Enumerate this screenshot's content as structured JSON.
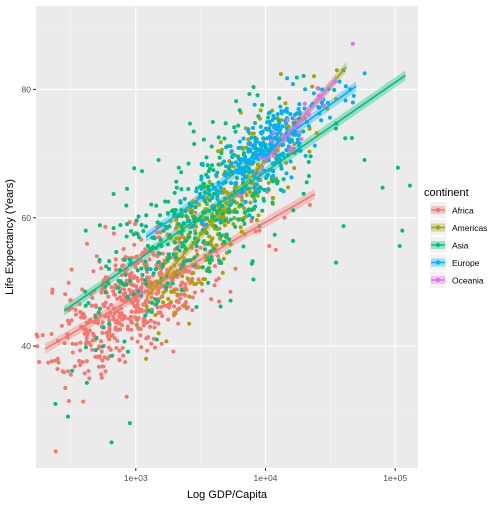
{
  "chart_data": {
    "type": "scatter",
    "title": "",
    "xlabel": "Log GDP/Capita",
    "ylabel": "Life Expectancy (Years)",
    "x_scale": "log10",
    "xlim": [
      170,
      150000
    ],
    "ylim": [
      21,
      93
    ],
    "x_ticks": [
      1000,
      10000,
      100000
    ],
    "x_tick_labels": [
      "1e+03",
      "1e+04",
      "1e+05"
    ],
    "y_ticks": [
      40,
      60,
      80
    ],
    "y_tick_labels": [
      "40",
      "60",
      "80"
    ],
    "grid": true,
    "legend": {
      "title": "continent",
      "placement": "right",
      "items": [
        "Africa",
        "Americas",
        "Asia",
        "Europe",
        "Oceania"
      ]
    },
    "series": [
      {
        "name": "Africa",
        "color": "#F8766D",
        "cluster": {
          "log10_x_center": 3.0,
          "log10_x_spread": 0.35,
          "y_center": 47.5,
          "y_spread": 7.5,
          "count": 600
        },
        "points": [
          [
            241,
            23.6
          ],
          [
            7000,
            64.0
          ],
          [
            14000,
            60.0
          ],
          [
            22000,
            62.0
          ],
          [
            12000,
            55.0
          ],
          [
            9000,
            58.0
          ],
          [
            3000,
            63.0
          ],
          [
            500,
            54.0
          ],
          [
            250,
            38.0
          ],
          [
            320,
            44.0
          ]
        ],
        "trend": {
          "x_range": [
            200,
            24000
          ],
          "y_range": [
            39.6,
            63.7
          ]
        }
      },
      {
        "name": "Americas",
        "color": "#A3A500",
        "cluster": {
          "log10_x_center": 3.7,
          "log10_x_spread": 0.3,
          "y_center": 66.0,
          "y_spread": 7.0,
          "count": 300
        },
        "points": [
          [
            1200,
            38.0
          ],
          [
            1500,
            42.0
          ],
          [
            35000,
            78.5
          ],
          [
            30000,
            77.0
          ],
          [
            20000,
            75.5
          ]
        ],
        "trend": {
          "x_range": [
            1200,
            42000
          ],
          "y_range": [
            47.5,
            83.5
          ]
        }
      },
      {
        "name": "Asia",
        "color": "#00BF7D",
        "cluster": {
          "log10_x_center": 3.5,
          "log10_x_spread": 0.4,
          "y_center": 60.0,
          "y_spread": 10.0,
          "count": 400
        },
        "points": [
          [
            113523,
            58.0
          ],
          [
            108382,
            55.6
          ],
          [
            105000,
            67.8
          ],
          [
            80000,
            64.7
          ],
          [
            58000,
            69.0
          ],
          [
            40000,
            58.7
          ],
          [
            35000,
            53.0
          ],
          [
            240,
            31.0
          ],
          [
            300,
            29.0
          ],
          [
            650,
            25.0
          ],
          [
            900,
            28.0
          ],
          [
            130000,
            65.0
          ]
        ],
        "trend": {
          "x_range": [
            280,
            120000
          ],
          "y_range": [
            45.5,
            82.2
          ]
        }
      },
      {
        "name": "Europe",
        "color": "#00B0F6",
        "cluster": {
          "log10_x_center": 4.0,
          "log10_x_spread": 0.25,
          "y_center": 72.0,
          "y_spread": 4.5,
          "count": 300
        },
        "points": [
          [
            1100,
            48.0
          ],
          [
            1300,
            52.0
          ],
          [
            45000,
            80.0
          ],
          [
            48000,
            79.0
          ]
        ],
        "trend": {
          "x_range": [
            1200,
            50000
          ],
          "y_range": [
            57.0,
            80.5
          ]
        }
      },
      {
        "name": "Oceania",
        "color": "#E76BF3",
        "cluster": {
          "log10_x_center": 4.2,
          "log10_x_spread": 0.15,
          "y_center": 74.0,
          "y_spread": 3.0,
          "count": 24
        },
        "points": [
          [
            34435,
            81.2
          ],
          [
            25185,
            80.2
          ],
          [
            10040,
            69.1
          ]
        ],
        "trend": {
          "x_range": [
            10000,
            35000
          ],
          "y_range": [
            69.0,
            81.6
          ]
        }
      }
    ]
  }
}
